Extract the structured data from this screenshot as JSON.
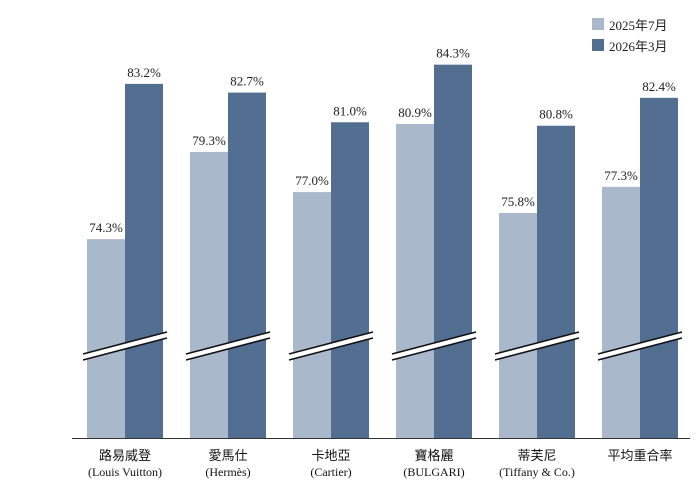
{
  "chart_data": {
    "type": "bar",
    "categories": [
      {
        "name": "路易威登",
        "sub": "(Louis Vuitton)"
      },
      {
        "name": "愛馬仕",
        "sub": "(Hermès)"
      },
      {
        "name": "卡地亞",
        "sub": "(Cartier)"
      },
      {
        "name": "寶格麗",
        "sub": "(BULGARI)"
      },
      {
        "name": "蒂芙尼",
        "sub": "(Tiffany & Co.)"
      },
      {
        "name": "平均重合率",
        "sub": ""
      }
    ],
    "series": [
      {
        "name": "2025年7月",
        "color": "#aab8cc",
        "values": [
          74.3,
          79.3,
          77.0,
          80.9,
          75.8,
          77.3
        ],
        "labels": [
          "74.3%",
          "79.3%",
          "77.0%",
          "80.9%",
          "75.8%",
          "77.3%"
        ]
      },
      {
        "name": "2026年3月",
        "color": "#526f91",
        "values": [
          83.2,
          82.7,
          81.0,
          84.3,
          80.8,
          82.4
        ],
        "labels": [
          "83.2%",
          "82.7%",
          "81.0%",
          "84.3%",
          "80.8%",
          "82.4%"
        ]
      }
    ],
    "axis_break": true,
    "title": "",
    "xlabel": "",
    "ylabel": "",
    "grid": false,
    "legend_position": "top-right"
  }
}
